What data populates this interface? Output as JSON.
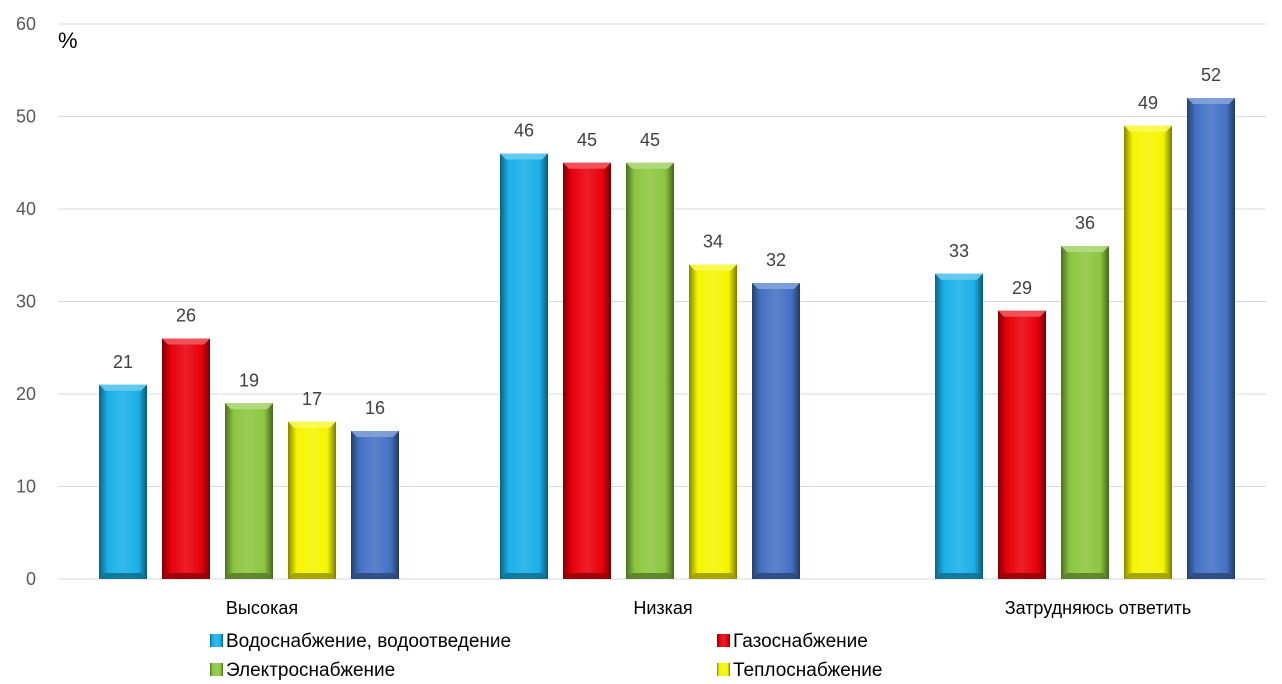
{
  "chart_data": {
    "type": "bar",
    "ylabel": "%",
    "ylim": [
      0,
      60
    ],
    "yticks": [
      0,
      10,
      20,
      30,
      40,
      50,
      60
    ],
    "categories": [
      "Высокая",
      "Низкая",
      "Затрудняюсь ответить"
    ],
    "grid": true,
    "legend_position": "bottom",
    "series": [
      {
        "name": "Водоснабжение, водоотведение",
        "color": "#1ab0e8",
        "values": [
          21,
          46,
          33
        ]
      },
      {
        "name": "Газоснабжение",
        "color": "#e8000b",
        "values": [
          26,
          45,
          29
        ]
      },
      {
        "name": "Электроснабжение",
        "color": "#8cc63f",
        "values": [
          19,
          45,
          36
        ]
      },
      {
        "name": "Теплоснабжение",
        "color": "#f5f500",
        "values": [
          17,
          34,
          49
        ]
      },
      {
        "name": "",
        "color": "#4472c4",
        "values": [
          16,
          32,
          52
        ]
      }
    ]
  }
}
